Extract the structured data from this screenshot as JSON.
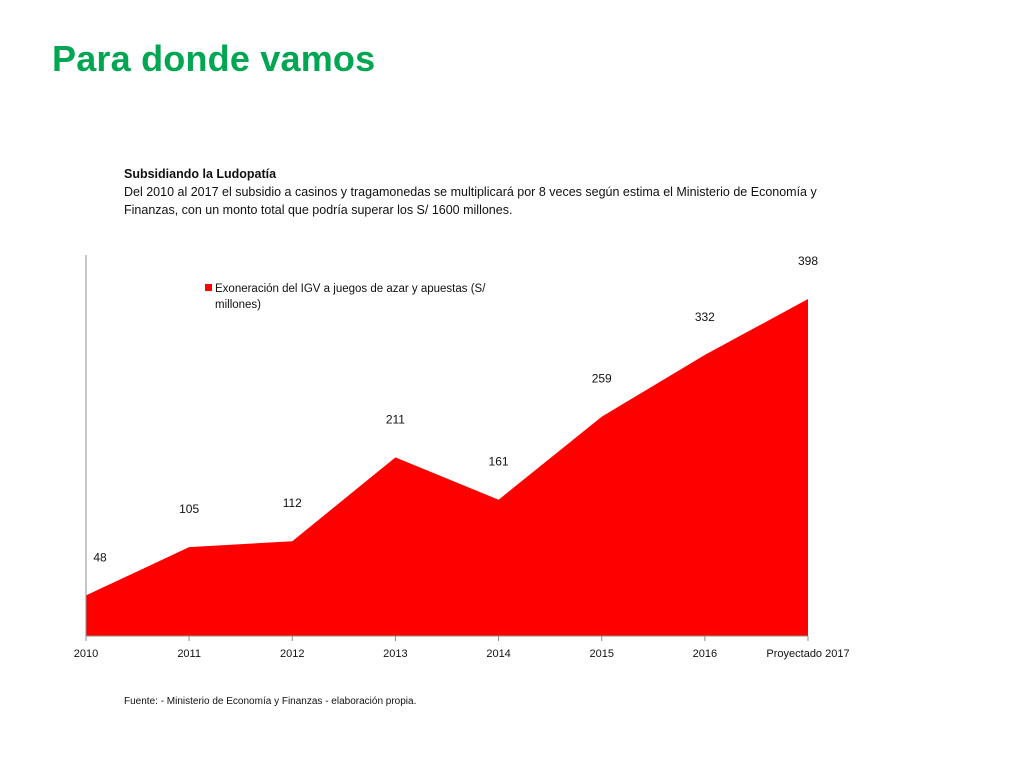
{
  "slide": {
    "title": "Para donde vamos",
    "intro_heading": "Subsidiando la Ludopatía",
    "intro_body": "Del 2010 al 2017 el subsidio a casinos y tragamonedas se multiplicará por 8 veces según estima el Ministerio de Economía y Finanzas, con un monto total que podría superar los S/ 1600 millones.",
    "source": "Fuente: - Ministerio de Economía y Finanzas - elaboración propia."
  },
  "colors": {
    "title": "#00a651",
    "area": "#ff0000",
    "axis": "#8c8c8c",
    "text": "#111111"
  },
  "chart_data": {
    "type": "area",
    "categories": [
      "2010",
      "2011",
      "2012",
      "2013",
      "2014",
      "2015",
      "2016",
      "Proyectado 2017"
    ],
    "series": [
      {
        "name": "Exoneración del IGV a juegos de azar y apuestas (S/ millones)",
        "values": [
          48,
          105,
          112,
          211,
          161,
          259,
          332,
          398
        ]
      }
    ],
    "data_labels": [
      "48",
      "105",
      "112",
      "211",
      "161",
      "259",
      "332",
      "398"
    ],
    "legend": {
      "line1": "Exoneración del IGV a juegos de azar y apuestas (S/",
      "line2": "millones)",
      "position": "top-left"
    },
    "ylim": [
      0,
      450
    ],
    "grid": false,
    "xlabel": "",
    "ylabel": ""
  }
}
